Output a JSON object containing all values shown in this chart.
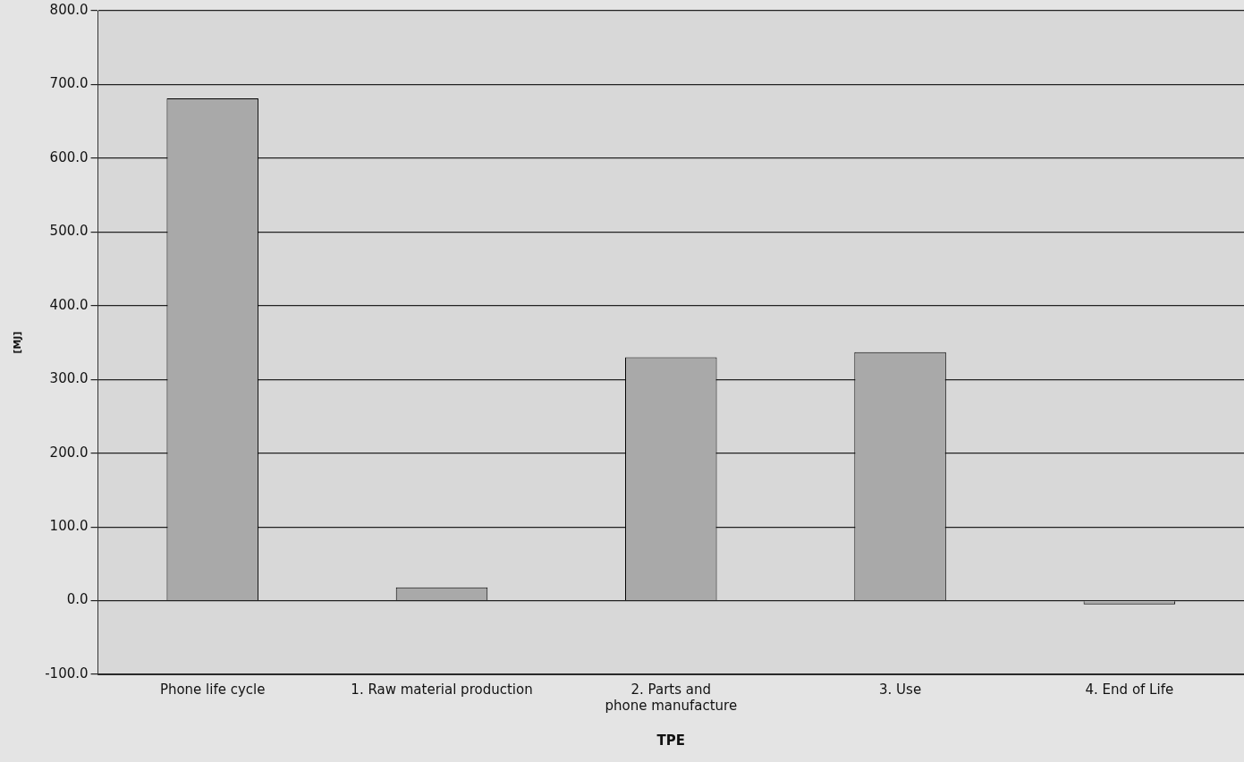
{
  "chart_data": {
    "type": "bar",
    "xlabel": "TPE",
    "ylabel": "[MJ]",
    "categories": [
      "Phone life cycle",
      "1. Raw material production",
      "2. Parts and phone manufacture",
      "3. Use",
      "4. End of Life"
    ],
    "values": [
      681,
      18,
      330,
      337,
      -5
    ],
    "color": "#a9a9a9",
    "ylim": [
      -100,
      800
    ],
    "yticks": [
      {
        "value": -100,
        "label": "-100.0"
      },
      {
        "value": 0,
        "label": "0.0"
      },
      {
        "value": 100,
        "label": "100.0"
      },
      {
        "value": 200,
        "label": "200.0"
      },
      {
        "value": 300,
        "label": "300.0"
      },
      {
        "value": 400,
        "label": "400.0"
      },
      {
        "value": 500,
        "label": "500.0"
      },
      {
        "value": 600,
        "label": "600.0"
      },
      {
        "value": 700,
        "label": "700.0"
      },
      {
        "value": 800,
        "label": "800.0"
      }
    ],
    "grid": "y"
  }
}
